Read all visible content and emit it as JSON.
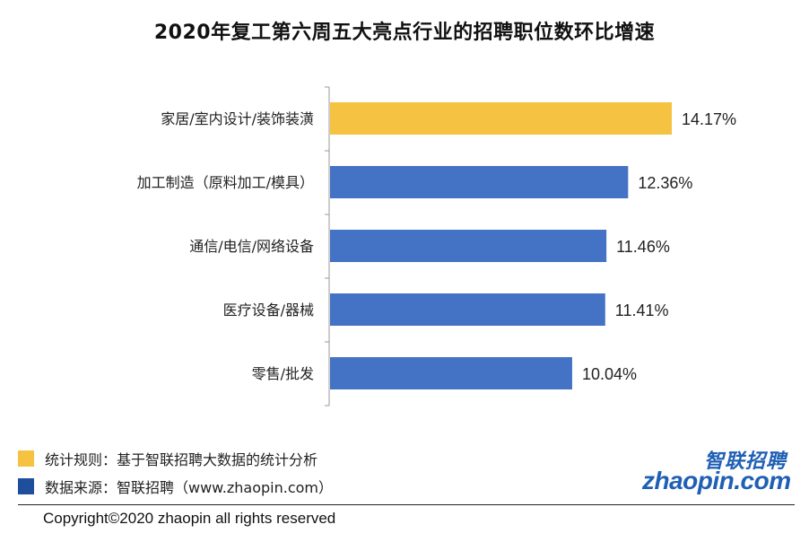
{
  "title": "2020年复工第六周五大亮点行业的招聘职位数环比增速",
  "chart_data": {
    "type": "bar",
    "orientation": "horizontal",
    "categories": [
      "家居/室内设计/装饰装潢",
      "加工制造（原料加工/模具）",
      "通信/电信/网络设备",
      "医疗设备/器械",
      "零售/批发"
    ],
    "values": [
      14.17,
      12.36,
      11.46,
      11.41,
      10.04
    ],
    "value_labels": [
      "14.17%",
      "12.36%",
      "11.46%",
      "11.41%",
      "10.04%"
    ],
    "bar_colors": [
      "#f5c242",
      "#4472c4",
      "#4472c4",
      "#4472c4",
      "#4472c4"
    ],
    "unit": "%",
    "xlim": [
      0,
      14.17
    ]
  },
  "legend": [
    {
      "text": "统计规则：基于智联招聘大数据的统计分析",
      "color": "#f5c242"
    },
    {
      "text": "数据来源：智联招聘（www.zhaopin.com）",
      "color": "#1f4e9c"
    }
  ],
  "logo": {
    "cn": "智联招聘",
    "en": "zhaopin.com"
  },
  "copyright": "Copyright©2020 zhaopin all rights reserved"
}
